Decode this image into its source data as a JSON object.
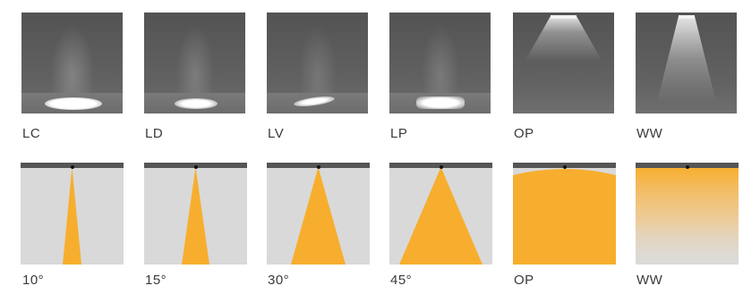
{
  "top_row": [
    {
      "label": "LC"
    },
    {
      "label": "LD"
    },
    {
      "label": "LV"
    },
    {
      "label": "LP"
    },
    {
      "label": "OP"
    },
    {
      "label": "WW"
    }
  ],
  "bottom_row": [
    {
      "label": "10°"
    },
    {
      "label": "15°"
    },
    {
      "label": "30°"
    },
    {
      "label": "45°"
    },
    {
      "label": "OP"
    },
    {
      "label": "WW"
    }
  ],
  "colors": {
    "beam": "#f7ae2e",
    "panel": "#d9d9d9",
    "rail": "#555555"
  }
}
